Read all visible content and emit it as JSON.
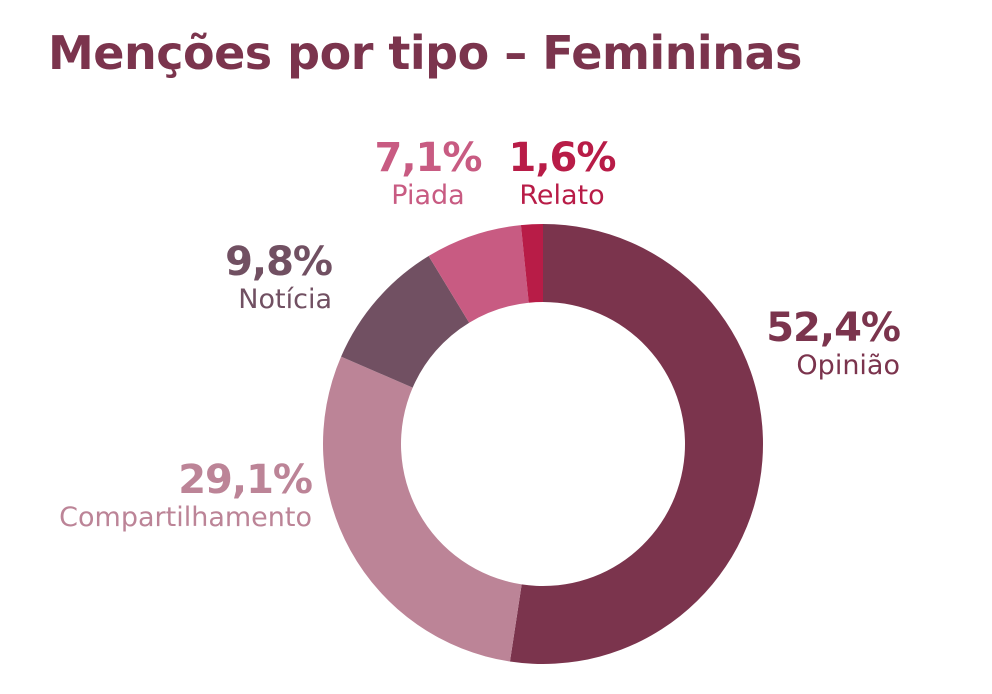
{
  "chart_data": {
    "type": "pie",
    "title": "Menções por tipo – Femininas",
    "series": [
      {
        "name": "Opinião",
        "value": 52.4,
        "label": "52,4%",
        "color": "#7b344d"
      },
      {
        "name": "Compartilhamento",
        "value": 29.1,
        "label": "29,1%",
        "color": "#bc8497"
      },
      {
        "name": "Notícia",
        "value": 9.8,
        "label": "9,8%",
        "color": "#715062"
      },
      {
        "name": "Piada",
        "value": 7.1,
        "label": "7,1%",
        "color": "#c85b82"
      },
      {
        "name": "Relato",
        "value": 1.6,
        "label": "1,6%",
        "color": "#b81c47"
      }
    ]
  }
}
